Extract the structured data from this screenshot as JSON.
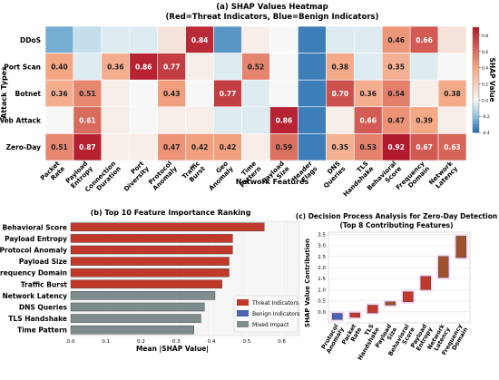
{
  "colors": {
    "threat": "#c0392b",
    "benign": "#4a63b5",
    "mixed": "#7f8c8d",
    "heat_pos": "#b2182b",
    "heat_neg": "#2166ac"
  },
  "chart_data": [
    {
      "type": "heatmap",
      "title": "(a) SHAP Values Heatmap",
      "subtitle": "(Red=Threat Indicators, Blue=Benign Indicators)",
      "xlabel": "Network Features",
      "ylabel": "Attack Types",
      "colorbar_label": "SHAP Value",
      "colorbar_ticks": [
        "0.8",
        "0.6",
        "0.4",
        "0.2",
        "0.0",
        "-0.2",
        "-0.4"
      ],
      "colorbar_range": [
        -0.4,
        0.9
      ],
      "x_categories": [
        "Packet Rate",
        "Payload Entropy",
        "Connection Duration",
        "Port Diversity",
        "Protocol Anomaly",
        "Traffic Burst",
        "Geo Anomaly",
        "Time Pattern",
        "Payload Size",
        "Header Flags",
        "DNS Queries",
        "TLS Handshake",
        "Behavioral Score",
        "Frequency Domain",
        "Network Latency"
      ],
      "y_categories": [
        "DDoS",
        "Port Scan",
        "Botnet",
        "Web Attack",
        "Zero-Day"
      ],
      "values": [
        [
          -0.25,
          -0.1,
          -0.05,
          -0.05,
          0.1,
          0.84,
          -0.3,
          0.05,
          0.0,
          -0.35,
          -0.05,
          -0.05,
          0.46,
          0.66,
          0.1
        ],
        [
          0.4,
          -0.05,
          0.36,
          0.86,
          0.77,
          0.05,
          -0.05,
          0.52,
          0.0,
          -0.35,
          0.38,
          -0.05,
          0.35,
          -0.05,
          0.0
        ],
        [
          0.36,
          0.51,
          0.05,
          0.0,
          0.43,
          0.0,
          0.77,
          -0.05,
          0.0,
          -0.35,
          0.7,
          0.36,
          0.54,
          0.05,
          0.38
        ],
        [
          0.0,
          0.61,
          0.05,
          0.0,
          0.05,
          0.05,
          -0.05,
          -0.05,
          0.86,
          -0.35,
          0.05,
          0.66,
          0.47,
          0.39,
          0.05
        ],
        [
          0.51,
          0.87,
          0.05,
          0.05,
          0.47,
          0.42,
          0.42,
          0.05,
          0.59,
          -0.35,
          0.35,
          0.53,
          0.92,
          0.67,
          0.63
        ]
      ],
      "cell_labels": [
        [
          "",
          "",
          "",
          "",
          "",
          "0.84",
          "",
          "",
          "",
          "",
          "",
          "",
          "0.46",
          "0.66",
          ""
        ],
        [
          "0.40",
          "",
          "0.36",
          "0.86",
          "0.77",
          "",
          "",
          "0.52",
          "",
          "",
          "0.38",
          "",
          "0.35",
          "",
          ""
        ],
        [
          "0.36",
          "0.51",
          "",
          "",
          "0.43",
          "",
          "0.77",
          "",
          "",
          "",
          "0.70",
          "0.36",
          "0.54",
          "",
          "0.38"
        ],
        [
          "",
          "0.61",
          "",
          "",
          "",
          "",
          "",
          "",
          "0.86",
          "",
          "",
          "0.66",
          "0.47",
          "0.39",
          ""
        ],
        [
          "0.51",
          "0.87",
          "",
          "",
          "0.47",
          "0.42",
          "0.42",
          "",
          "0.59",
          "",
          "0.35",
          "0.53",
          "0.92",
          "0.67",
          "0.63"
        ]
      ]
    },
    {
      "type": "bar",
      "orientation": "horizontal",
      "title": "(b) Top 10 Feature Importance Ranking",
      "xlabel": "Mean |SHAP Value|",
      "xlim": [
        0,
        0.65
      ],
      "xticks": [
        "0.0",
        "0.1",
        "0.2",
        "0.3",
        "0.4",
        "0.5",
        "0.6"
      ],
      "grid": true,
      "legend_position": "bottom-right",
      "categories": [
        "Behavioral Score",
        "Payload Entropy",
        "Protocol Anomaly",
        "Payload Size",
        "Frequency Domain",
        "Traffic Burst",
        "Network Latency",
        "DNS Queries",
        "TLS Handshake",
        "Time Pattern"
      ],
      "values": [
        0.55,
        0.46,
        0.46,
        0.45,
        0.45,
        0.43,
        0.41,
        0.38,
        0.37,
        0.35
      ],
      "groups": [
        "threat",
        "threat",
        "threat",
        "threat",
        "threat",
        "threat",
        "mixed",
        "mixed",
        "mixed",
        "mixed"
      ],
      "legend": [
        "Threat Indicators",
        "Benign Indicators",
        "Mixed Impact"
      ]
    },
    {
      "type": "waterfall",
      "title": "(c) Decision Process Analysis for Zero-Day Detection",
      "subtitle": "(Top 8 Contributing Features)",
      "ylabel": "SHAP Value Contribution",
      "ylim": [
        -0.5,
        3.6
      ],
      "yticks": [
        "0.0",
        "0.5",
        "1.0",
        "1.5",
        "2.0",
        "2.5",
        "3.0",
        "3.5"
      ],
      "grid": true,
      "categories": [
        "Protocol Anomaly",
        "Packet Rate",
        "TLS Handshake",
        "Payload Size",
        "Behavioral Score",
        "Payload Entropy",
        "Network Latency",
        "Frequency Domain"
      ],
      "starts": [
        -0.07,
        -0.25,
        -0.05,
        0.3,
        0.45,
        1.0,
        1.55,
        2.45
      ],
      "ends": [
        -0.35,
        -0.05,
        0.3,
        0.45,
        0.9,
        1.6,
        2.5,
        3.42
      ],
      "bar_colors": [
        "#4a63b5",
        "#c0392b",
        "#c0392b",
        "#a0522d",
        "#c0392b",
        "#c0392b",
        "#a0522d",
        "#a0522d"
      ]
    }
  ]
}
